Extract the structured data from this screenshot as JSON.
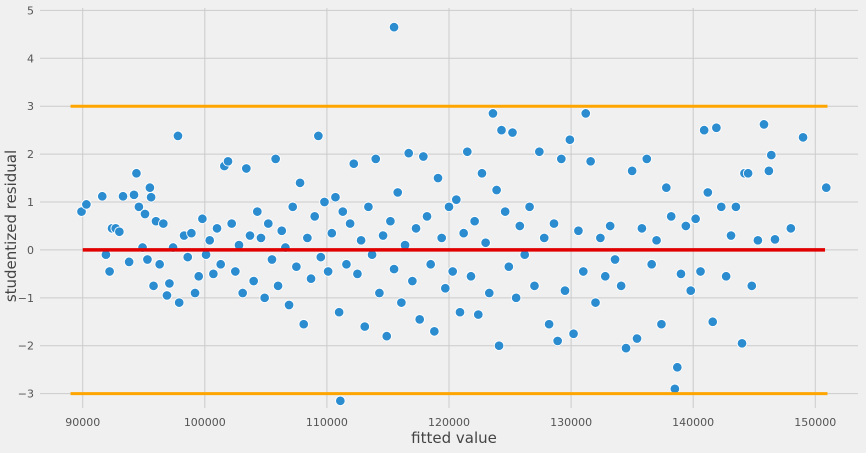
{
  "chart_data": {
    "type": "scatter",
    "title": "",
    "xlabel": "fitted value",
    "ylabel": "studentized residual",
    "xlim": [
      86500,
      153500
    ],
    "ylim": [
      -3.3,
      5.05
    ],
    "x_ticks": [
      90000,
      100000,
      110000,
      120000,
      130000,
      140000,
      150000
    ],
    "x_tick_labels": [
      "90000",
      "100000",
      "110000",
      "120000",
      "130000",
      "140000",
      "150000"
    ],
    "y_ticks": [
      -3,
      -2,
      -1,
      0,
      1,
      2,
      3,
      4,
      5
    ],
    "y_tick_labels": [
      "−3",
      "−2",
      "−1",
      "0",
      "1",
      "2",
      "3",
      "4",
      "5"
    ],
    "grid": true,
    "colors": {
      "background": "#f0f0f0",
      "grid": "#cbcbcb",
      "points": "#2b8cd0",
      "point_edge": "#ffffff",
      "zero_line": "#e00000",
      "bound_lines": "#ffa500"
    },
    "reference_lines": [
      {
        "name": "upper-bound",
        "y": 3,
        "x_range": [
          89000,
          151000
        ],
        "color": "#ffa500"
      },
      {
        "name": "lower-bound",
        "y": -3,
        "x_range": [
          89000,
          151000
        ],
        "color": "#ffa500"
      },
      {
        "name": "zero-line",
        "y": 0,
        "x_range": [
          90000,
          150800
        ],
        "color": "#e00000"
      }
    ],
    "points": [
      [
        115500,
        4.65
      ],
      [
        89900,
        0.8
      ],
      [
        90300,
        0.95
      ],
      [
        91600,
        1.12
      ],
      [
        91900,
        -0.1
      ],
      [
        92200,
        -0.45
      ],
      [
        92400,
        0.45
      ],
      [
        92700,
        0.45
      ],
      [
        93000,
        0.38
      ],
      [
        93300,
        1.12
      ],
      [
        93800,
        -0.25
      ],
      [
        94200,
        1.15
      ],
      [
        94400,
        1.6
      ],
      [
        94600,
        0.9
      ],
      [
        94900,
        0.05
      ],
      [
        95100,
        0.75
      ],
      [
        95300,
        -0.2
      ],
      [
        95500,
        1.3
      ],
      [
        95600,
        1.1
      ],
      [
        95800,
        -0.75
      ],
      [
        96000,
        0.6
      ],
      [
        96300,
        -0.3
      ],
      [
        96600,
        0.55
      ],
      [
        96900,
        -0.95
      ],
      [
        97100,
        -0.7
      ],
      [
        97400,
        0.05
      ],
      [
        97800,
        2.38
      ],
      [
        97900,
        -1.1
      ],
      [
        98300,
        0.3
      ],
      [
        98600,
        -0.15
      ],
      [
        98900,
        0.35
      ],
      [
        99200,
        -0.9
      ],
      [
        99500,
        -0.55
      ],
      [
        99800,
        0.65
      ],
      [
        100100,
        -0.1
      ],
      [
        100400,
        0.2
      ],
      [
        100700,
        -0.5
      ],
      [
        101000,
        0.45
      ],
      [
        101300,
        -0.3
      ],
      [
        101600,
        1.75
      ],
      [
        101900,
        1.85
      ],
      [
        102200,
        0.55
      ],
      [
        102500,
        -0.45
      ],
      [
        102800,
        0.1
      ],
      [
        103100,
        -0.9
      ],
      [
        103400,
        1.7
      ],
      [
        103700,
        0.3
      ],
      [
        104000,
        -0.65
      ],
      [
        104300,
        0.8
      ],
      [
        104600,
        0.25
      ],
      [
        104900,
        -1.0
      ],
      [
        105200,
        0.55
      ],
      [
        105500,
        -0.2
      ],
      [
        105800,
        1.9
      ],
      [
        106000,
        -0.75
      ],
      [
        106300,
        0.4
      ],
      [
        106600,
        0.05
      ],
      [
        106900,
        -1.15
      ],
      [
        107200,
        0.9
      ],
      [
        107500,
        -0.35
      ],
      [
        107800,
        1.4
      ],
      [
        108100,
        -1.55
      ],
      [
        108400,
        0.25
      ],
      [
        108700,
        -0.6
      ],
      [
        109000,
        0.7
      ],
      [
        109300,
        2.38
      ],
      [
        109500,
        -0.15
      ],
      [
        109800,
        1.0
      ],
      [
        110100,
        -0.45
      ],
      [
        110400,
        0.35
      ],
      [
        110700,
        1.1
      ],
      [
        111000,
        -1.3
      ],
      [
        111100,
        -3.15
      ],
      [
        111300,
        0.8
      ],
      [
        111600,
        -0.3
      ],
      [
        111900,
        0.55
      ],
      [
        112200,
        1.8
      ],
      [
        112500,
        -0.5
      ],
      [
        112800,
        0.2
      ],
      [
        113100,
        -1.6
      ],
      [
        113400,
        0.9
      ],
      [
        113700,
        -0.1
      ],
      [
        114000,
        1.9
      ],
      [
        114300,
        -0.9
      ],
      [
        114600,
        0.3
      ],
      [
        114900,
        -1.8
      ],
      [
        115200,
        0.6
      ],
      [
        115500,
        -0.4
      ],
      [
        115800,
        1.2
      ],
      [
        116100,
        -1.1
      ],
      [
        116400,
        0.1
      ],
      [
        116700,
        2.02
      ],
      [
        117000,
        -0.65
      ],
      [
        117300,
        0.45
      ],
      [
        117600,
        -1.45
      ],
      [
        117900,
        1.95
      ],
      [
        118200,
        0.7
      ],
      [
        118500,
        -0.3
      ],
      [
        118800,
        -1.7
      ],
      [
        119100,
        1.5
      ],
      [
        119400,
        0.25
      ],
      [
        119700,
        -0.8
      ],
      [
        120000,
        0.9
      ],
      [
        120300,
        -0.45
      ],
      [
        120600,
        1.05
      ],
      [
        120900,
        -1.3
      ],
      [
        121200,
        0.35
      ],
      [
        121500,
        2.05
      ],
      [
        121800,
        -0.55
      ],
      [
        122100,
        0.6
      ],
      [
        122400,
        -1.35
      ],
      [
        122700,
        1.6
      ],
      [
        123000,
        0.15
      ],
      [
        123300,
        -0.9
      ],
      [
        123600,
        2.85
      ],
      [
        123900,
        1.25
      ],
      [
        124100,
        -2.0
      ],
      [
        124300,
        2.5
      ],
      [
        124600,
        0.8
      ],
      [
        124900,
        -0.35
      ],
      [
        125200,
        2.45
      ],
      [
        125500,
        -1.0
      ],
      [
        125800,
        0.5
      ],
      [
        126200,
        -0.1
      ],
      [
        126600,
        0.9
      ],
      [
        127000,
        -0.75
      ],
      [
        127400,
        2.05
      ],
      [
        127800,
        0.25
      ],
      [
        128200,
        -1.55
      ],
      [
        128600,
        0.55
      ],
      [
        128900,
        -1.9
      ],
      [
        129200,
        1.9
      ],
      [
        129500,
        -0.85
      ],
      [
        129900,
        2.3
      ],
      [
        130200,
        -1.75
      ],
      [
        130600,
        0.4
      ],
      [
        131000,
        -0.45
      ],
      [
        131200,
        2.85
      ],
      [
        131600,
        1.85
      ],
      [
        132000,
        -1.1
      ],
      [
        132400,
        0.25
      ],
      [
        132800,
        -0.55
      ],
      [
        133200,
        0.5
      ],
      [
        133600,
        -0.2
      ],
      [
        134100,
        -0.75
      ],
      [
        134500,
        -2.05
      ],
      [
        135000,
        1.65
      ],
      [
        135400,
        -1.85
      ],
      [
        135800,
        0.45
      ],
      [
        136200,
        1.9
      ],
      [
        136600,
        -0.3
      ],
      [
        137000,
        0.2
      ],
      [
        137400,
        -1.55
      ],
      [
        137800,
        1.3
      ],
      [
        138200,
        0.7
      ],
      [
        138500,
        -2.9
      ],
      [
        138700,
        -2.45
      ],
      [
        139000,
        -0.5
      ],
      [
        139400,
        0.5
      ],
      [
        139800,
        -0.85
      ],
      [
        140200,
        0.65
      ],
      [
        140600,
        -0.45
      ],
      [
        140900,
        2.5
      ],
      [
        141200,
        1.2
      ],
      [
        141600,
        -1.5
      ],
      [
        141900,
        2.55
      ],
      [
        142300,
        0.9
      ],
      [
        142700,
        -0.55
      ],
      [
        143100,
        0.3
      ],
      [
        143500,
        0.9
      ],
      [
        144000,
        -1.95
      ],
      [
        144200,
        1.6
      ],
      [
        144500,
        1.6
      ],
      [
        144800,
        -0.75
      ],
      [
        145300,
        0.2
      ],
      [
        145800,
        2.62
      ],
      [
        146200,
        1.65
      ],
      [
        146400,
        1.98
      ],
      [
        146700,
        0.22
      ],
      [
        148000,
        0.45
      ],
      [
        149000,
        2.35
      ],
      [
        150900,
        1.3
      ]
    ]
  }
}
